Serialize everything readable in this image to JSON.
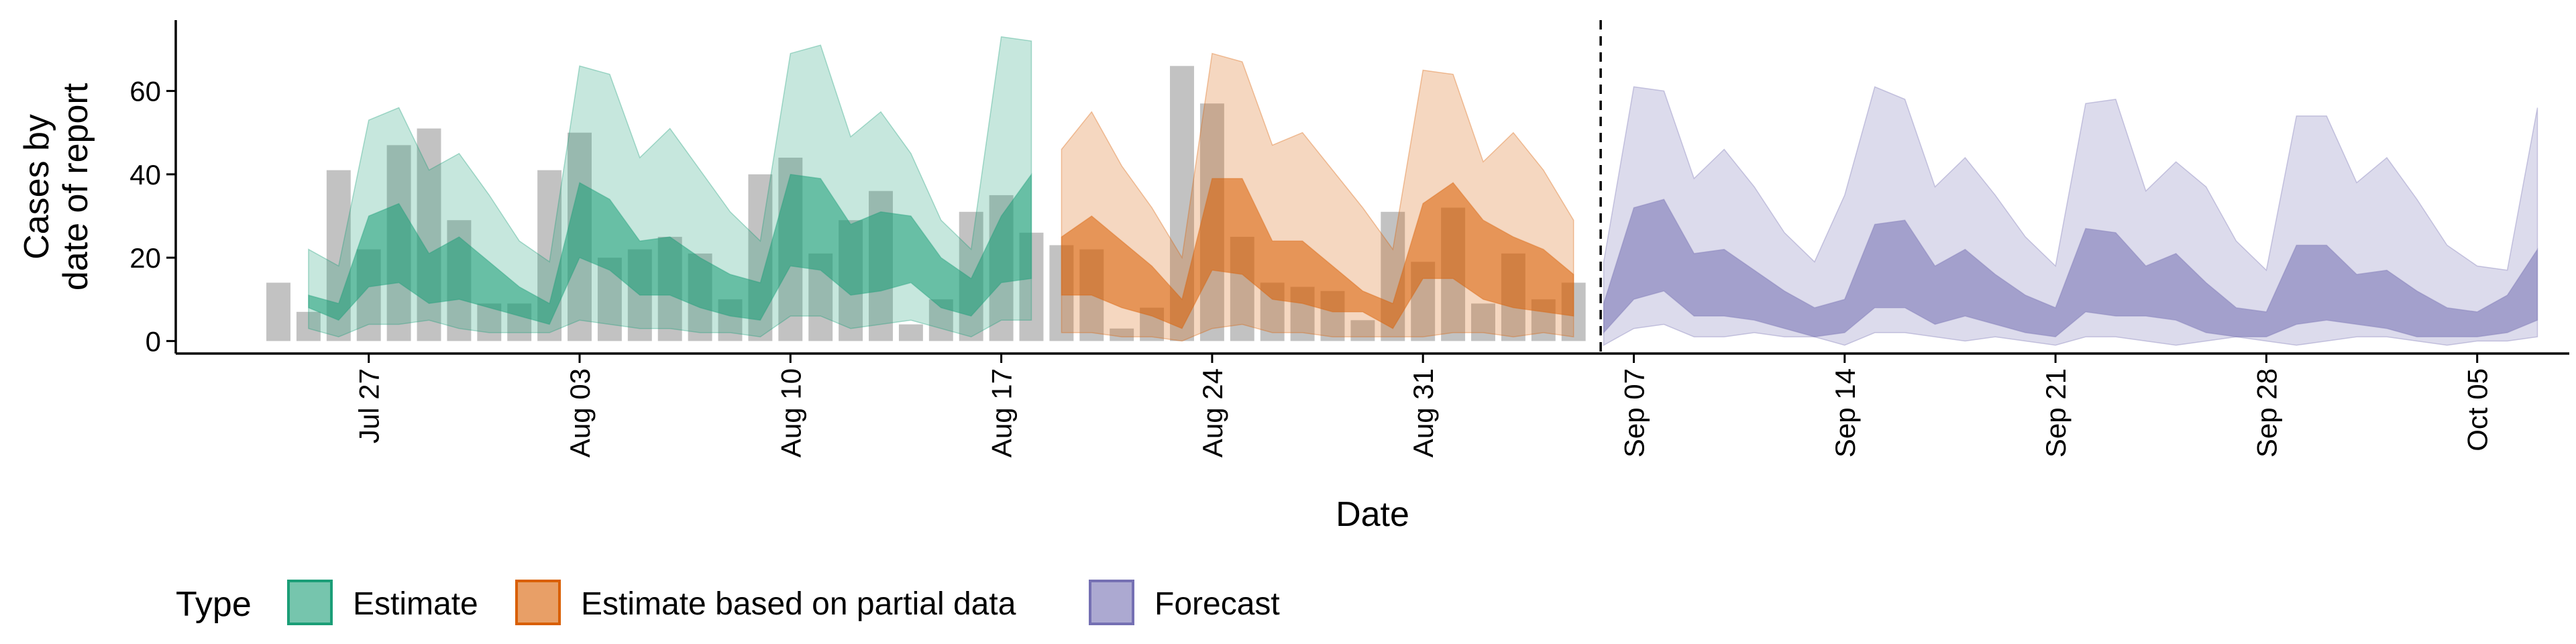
{
  "chart_data": {
    "type": "area",
    "title": "",
    "xlabel": "Date",
    "ylabel": [
      "Cases by",
      "date of report"
    ],
    "x_start": "2021-07-24",
    "ylim": [
      -3,
      77
    ],
    "y_ticks": [
      0,
      20,
      40,
      60
    ],
    "x_ticks": [
      {
        "date": "2021-07-27",
        "label": "Jul 27"
      },
      {
        "date": "2021-08-03",
        "label": "Aug 03"
      },
      {
        "date": "2021-08-10",
        "label": "Aug 10"
      },
      {
        "date": "2021-08-17",
        "label": "Aug 17"
      },
      {
        "date": "2021-08-24",
        "label": "Aug 24"
      },
      {
        "date": "2021-08-31",
        "label": "Aug 31"
      },
      {
        "date": "2021-09-07",
        "label": "Sep 07"
      },
      {
        "date": "2021-09-14",
        "label": "Sep 14"
      },
      {
        "date": "2021-09-21",
        "label": "Sep 21"
      },
      {
        "date": "2021-09-28",
        "label": "Sep 28"
      },
      {
        "date": "2021-10-05",
        "label": "Oct 05"
      }
    ],
    "forecast_date": "2021-09-06",
    "reported_cases": {
      "start": "2021-07-24",
      "values": [
        14,
        7,
        41,
        22,
        47,
        51,
        29,
        9,
        9,
        41,
        50,
        20,
        22,
        25,
        21,
        10,
        40,
        44,
        21,
        29,
        36,
        4,
        10,
        31,
        35,
        26,
        23,
        22,
        3,
        8,
        66,
        57,
        25,
        14,
        13,
        12,
        5,
        31,
        19,
        32,
        9,
        21,
        10,
        14
      ]
    },
    "legend": {
      "title": "Type",
      "position": "bottom"
    },
    "series": [
      {
        "name": "Estimate",
        "color": "#1b9e77",
        "start": "2021-07-25",
        "outer_lower": [
          3,
          1,
          4,
          4,
          5,
          3,
          2,
          2,
          2,
          5,
          4,
          3,
          3,
          2,
          2,
          1,
          6,
          6,
          3,
          4,
          5,
          3,
          1,
          5,
          5
        ],
        "inner_lower": [
          8,
          5,
          13,
          14,
          9,
          10,
          8,
          6,
          4,
          20,
          17,
          11,
          11,
          8,
          6,
          5,
          18,
          17,
          11,
          12,
          14,
          8,
          6,
          14,
          15
        ],
        "inner_upper": [
          11,
          9,
          30,
          33,
          21,
          25,
          19,
          13,
          9,
          38,
          34,
          24,
          25,
          20,
          16,
          14,
          40,
          39,
          28,
          31,
          30,
          20,
          15,
          30,
          40
        ],
        "outer_upper": [
          22,
          18,
          53,
          56,
          41,
          45,
          35,
          24,
          19,
          66,
          64,
          44,
          51,
          41,
          31,
          24,
          69,
          71,
          49,
          55,
          45,
          29,
          22,
          73,
          72
        ]
      },
      {
        "name": "Estimate based on partial data",
        "color": "#d95f02",
        "start": "2021-08-19",
        "outer_lower": [
          2,
          2,
          1,
          1,
          0,
          3,
          4,
          2,
          2,
          1,
          1,
          1,
          1,
          2,
          2,
          1,
          2,
          1
        ],
        "inner_lower": [
          11,
          11,
          8,
          6,
          3,
          17,
          16,
          10,
          9,
          7,
          7,
          3,
          15,
          15,
          10,
          8,
          7,
          6
        ],
        "inner_upper": [
          25,
          30,
          24,
          18,
          10,
          39,
          39,
          24,
          24,
          18,
          12,
          9,
          33,
          38,
          29,
          25,
          22,
          16
        ],
        "outer_upper": [
          46,
          55,
          42,
          32,
          20,
          69,
          67,
          47,
          50,
          41,
          32,
          22,
          65,
          64,
          43,
          50,
          41,
          29
        ]
      },
      {
        "name": "Forecast",
        "color": "#7570b3",
        "start": "2021-09-06",
        "outer_lower": [
          -1,
          3,
          4,
          1,
          1,
          2,
          1,
          1,
          -1,
          2,
          2,
          1,
          0,
          1,
          0,
          -1,
          1,
          1,
          0,
          -1,
          0,
          1,
          0,
          -1,
          0,
          1,
          1,
          0,
          -1,
          0,
          0,
          1
        ],
        "inner_lower": [
          2,
          10,
          12,
          6,
          6,
          5,
          3,
          1,
          2,
          8,
          8,
          4,
          6,
          4,
          2,
          1,
          7,
          6,
          6,
          5,
          2,
          1,
          1,
          4,
          5,
          4,
          3,
          1,
          1,
          1,
          2,
          5
        ],
        "inner_upper": [
          9,
          32,
          34,
          21,
          22,
          17,
          12,
          8,
          10,
          28,
          29,
          18,
          22,
          16,
          11,
          8,
          27,
          26,
          18,
          21,
          14,
          8,
          7,
          23,
          23,
          16,
          17,
          12,
          8,
          7,
          11,
          22
        ],
        "outer_upper": [
          19,
          61,
          60,
          39,
          46,
          37,
          26,
          19,
          35,
          61,
          58,
          37,
          44,
          35,
          25,
          18,
          57,
          58,
          36,
          43,
          37,
          24,
          17,
          54,
          54,
          38,
          44,
          34,
          23,
          18,
          17,
          56
        ]
      }
    ]
  }
}
